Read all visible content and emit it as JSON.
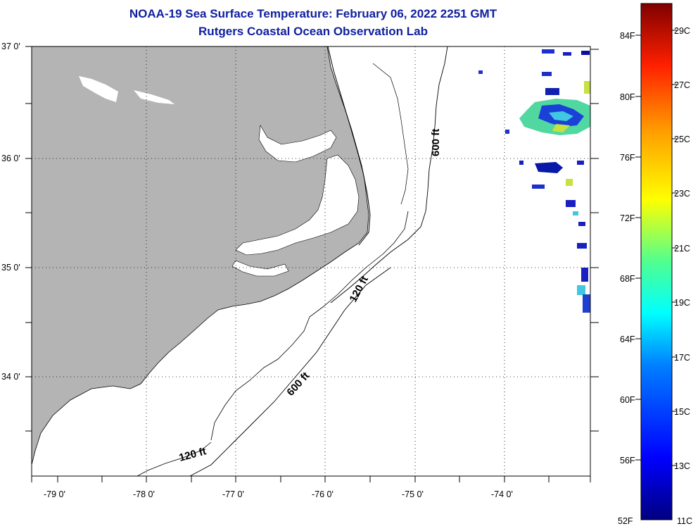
{
  "header": {
    "title": "NOAA-19 Sea Surface Temperature:  February 06, 2022 2251 GMT",
    "subtitle": "Rutgers Coastal Ocean Observation Lab"
  },
  "map": {
    "lat_labels": [
      "37 0'",
      "36 0'",
      "35 0'",
      "34 0'"
    ],
    "lon_labels": [
      "-79 0'",
      "-78 0'",
      "-77 0'",
      "-76 0'",
      "-75 0'",
      "-74 0'"
    ],
    "land_color": "#b4b4b4",
    "contours": [
      {
        "label": "120 ft"
      },
      {
        "label": "120 ft"
      },
      {
        "label": "600 ft"
      },
      {
        "label": "600 ft"
      }
    ]
  },
  "colorbar": {
    "fahrenheit_labels": [
      "84F",
      "80F",
      "76F",
      "72F",
      "68F",
      "64F",
      "60F",
      "56F",
      "52F"
    ],
    "celsius_labels": [
      "29C",
      "27C",
      "25C",
      "23C",
      "21C",
      "19C",
      "17C",
      "15C",
      "13C",
      "11C"
    ],
    "min_c": 11,
    "max_c": 30,
    "colors": [
      "#00008f",
      "#0000ff",
      "#00a0ff",
      "#00ffff",
      "#50ff90",
      "#ffff00",
      "#ffa000",
      "#ff3000",
      "#c00000",
      "#800000"
    ]
  }
}
